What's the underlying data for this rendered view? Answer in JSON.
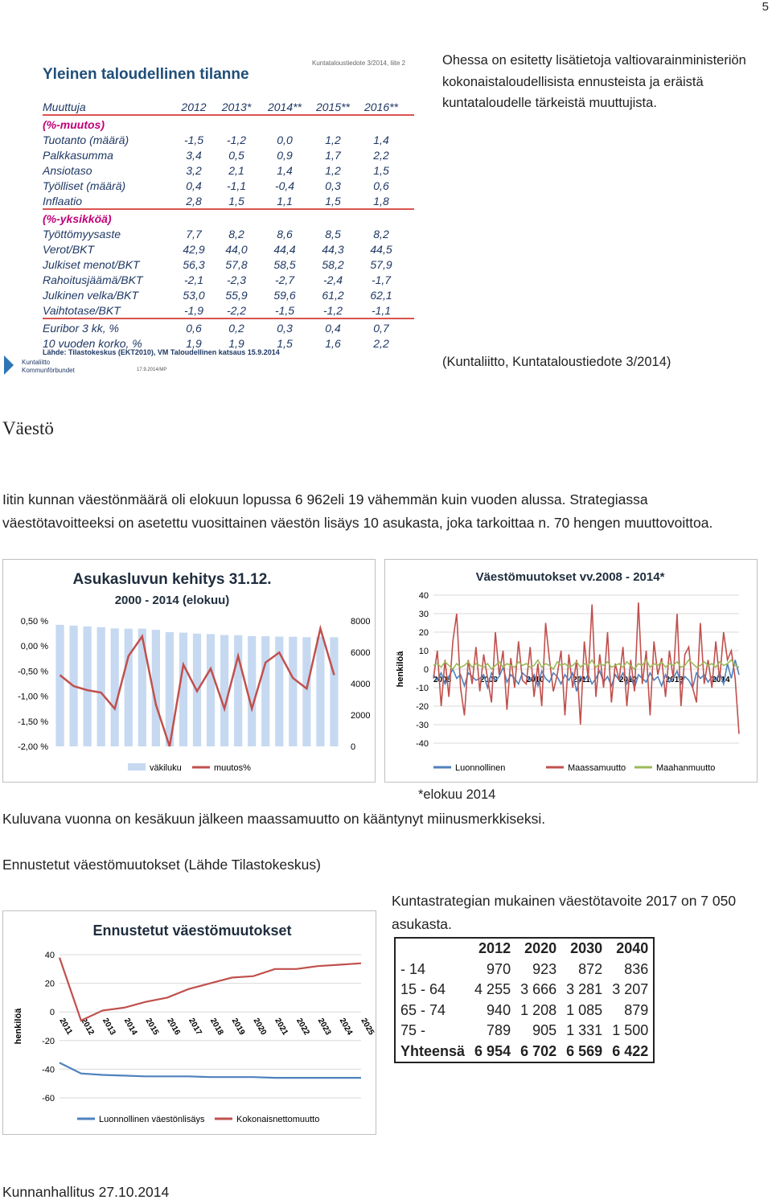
{
  "page_number": "5",
  "econ_table": {
    "title": "Yleinen taloudellinen tilanne",
    "note": "Kuntataloustiedote 3/2014, liite 2",
    "header": [
      "Muuttuja",
      "2012",
      "2013*",
      "2014**",
      "2015**",
      "2016**"
    ],
    "groups": [
      {
        "title": "(%-muutos)",
        "rows": [
          [
            "Tuotanto (määrä)",
            "-1,5",
            "-1,2",
            "0,0",
            "1,2",
            "1,4"
          ],
          [
            "Palkkasumma",
            "3,4",
            "0,5",
            "0,9",
            "1,7",
            "2,2"
          ],
          [
            "Ansiotaso",
            "3,2",
            "2,1",
            "1,4",
            "1,2",
            "1,5"
          ],
          [
            "Työlliset (määrä)",
            "0,4",
            "-1,1",
            "-0,4",
            "0,3",
            "0,6"
          ],
          [
            "Inflaatio",
            "2,8",
            "1,5",
            "1,1",
            "1,5",
            "1,8"
          ]
        ]
      },
      {
        "title": "(%-yksikköä)",
        "rows": [
          [
            "Työttömyysaste",
            "7,7",
            "8,2",
            "8,6",
            "8,5",
            "8,2"
          ],
          [
            "Verot/BKT",
            "42,9",
            "44,0",
            "44,4",
            "44,3",
            "44,5"
          ],
          [
            "Julkiset menot/BKT",
            "56,3",
            "57,8",
            "58,5",
            "58,2",
            "57,9"
          ],
          [
            "Rahoitusjäämä/BKT",
            "-2,1",
            "-2,3",
            "-2,7",
            "-2,4",
            "-1,7"
          ],
          [
            "Julkinen velka/BKT",
            "53,0",
            "55,9",
            "59,6",
            "61,2",
            "62,1"
          ],
          [
            "Vaihtotase/BKT",
            "-1,9",
            "-2,2",
            "-1,5",
            "-1,2",
            "-1,1"
          ]
        ]
      },
      {
        "rows": [
          [
            "Euribor 3 kk, %",
            "0,6",
            "0,2",
            "0,3",
            "0,4",
            "0,7"
          ],
          [
            "10 vuoden korko, %",
            "1,9",
            "1,9",
            "1,5",
            "1,6",
            "2,2"
          ]
        ]
      }
    ],
    "source": "Lähde: Tilastokeskus (EKT2010), VM Taloudellinen katsaus 15.9.2014",
    "logo": [
      "Kuntaliitto",
      "Kommunförbundet"
    ],
    "stamp": "17.9.2014/MP"
  },
  "intro_text": "Ohessa on esitetty lisätietoja valtiovarainministeriön kokonaistaloudellisista ennusteista ja eräistä kuntataloudelle tärkeistä muuttujista.",
  "intro_source": "(Kuntaliitto, Kuntataloustiedote 3/2014)",
  "heading1": "Väestö",
  "paragraph1": "Iitin kunnan väestönmäärä oli elokuun lopussa 6 962eli 19 vähemmän kuin vuoden alussa. Strategiassa väestötavoitteeksi on asetettu vuosittainen väestön lisäys 10 asukasta, joka tarkoittaa n. 70 hengen muuttovoittoa.",
  "charts": [
    {
      "type": "bar_line",
      "title": "Asukasluvun kehitys 31.12.",
      "subtitle": "2000 - 2014 (elokuu)",
      "categories": [
        null,
        null,
        null,
        null,
        null,
        null,
        null,
        null,
        null,
        null,
        null,
        null,
        null,
        null,
        null,
        null,
        null,
        null,
        null,
        null,
        null
      ],
      "series": [
        {
          "name": "väkiluku",
          "color": "#c6d9f1",
          "axis": "y2",
          "values": [
            7750,
            7700,
            7650,
            7600,
            7520,
            7500,
            7510,
            7430,
            7280,
            7250,
            7190,
            7160,
            7100,
            7090,
            7030,
            7020,
            7000,
            6990,
            6960,
            6990,
            6962
          ]
        },
        {
          "name": "muutos%",
          "color": "#c0504d",
          "values": [
            -0.58,
            -0.8,
            -0.88,
            -0.93,
            -1.25,
            -0.2,
            0.19,
            -1.17,
            -2.0,
            -0.37,
            -0.9,
            -0.45,
            -1.25,
            -0.2,
            -1.25,
            -0.33,
            -0.13,
            -0.64,
            -0.85,
            0.35,
            -0.58
          ]
        }
      ],
      "ylim": [
        -2,
        0.5
      ],
      "yticks": [
        {
          "value": 0.5,
          "label": "0,50 %"
        },
        {
          "value": 0,
          "label": "0,00 %"
        },
        {
          "value": -0.5,
          "label": "-0,50 %"
        },
        {
          "value": -1,
          "label": "-1,00 %"
        },
        {
          "value": -1.5,
          "label": "-1,50 %"
        },
        {
          "value": -2,
          "label": "-2,00 %"
        }
      ],
      "y2lim": [
        0,
        8000
      ],
      "y2ticks": [
        0,
        2000,
        4000,
        6000,
        8000
      ],
      "grid": false
    },
    {
      "type": "line",
      "title": "Väestömuutokset vv.2008 - 2014*",
      "y_label": "henkilöä",
      "categories": [
        "2008",
        null,
        null,
        null,
        null,
        null,
        null,
        null,
        null,
        null,
        null,
        null,
        "2009",
        null,
        null,
        null,
        null,
        null,
        null,
        null,
        null,
        null,
        null,
        null,
        "2010",
        null,
        null,
        null,
        null,
        null,
        null,
        null,
        null,
        null,
        null,
        null,
        "2011",
        null,
        null,
        null,
        null,
        null,
        null,
        null,
        null,
        null,
        null,
        null,
        "2012",
        null,
        null,
        null,
        null,
        null,
        null,
        null,
        null,
        null,
        null,
        null,
        "2013",
        null,
        null,
        null,
        null,
        null,
        null,
        null,
        null,
        null,
        null,
        null,
        "2014",
        null,
        null,
        null,
        null,
        null,
        null,
        null
      ],
      "series": [
        {
          "name": "Luonnollinen",
          "color": "#4f81bd",
          "values": [
            -3,
            -6,
            -2,
            -8,
            -4,
            0,
            -5,
            -3,
            -9,
            -2,
            -4,
            -6,
            -5,
            -3,
            -10,
            -2,
            -6,
            -4,
            1,
            -7,
            -3,
            -5,
            -8,
            -2,
            -4,
            -6,
            -3,
            -9,
            -1,
            -5,
            -7,
            -2,
            -4,
            -8,
            -3,
            -6,
            -2,
            -12,
            -4,
            -6,
            -3,
            -8,
            -5,
            -1,
            -7,
            -4,
            -9,
            -3,
            -6,
            -2,
            -8,
            -4,
            -10,
            -3,
            -5,
            -7,
            -2,
            -6,
            -4,
            -9,
            -3,
            -7,
            -5,
            -1,
            -8,
            -4,
            -6,
            -10,
            -2,
            -5,
            -3,
            -7,
            -4,
            -6,
            -2,
            -8,
            3,
            -5,
            5,
            -3
          ]
        },
        {
          "name": "Maassamuutto",
          "color": "#c0504d",
          "values": [
            -5,
            10,
            -20,
            5,
            -15,
            15,
            30,
            -10,
            -25,
            5,
            -8,
            12,
            -12,
            8,
            -5,
            -18,
            20,
            -3,
            10,
            -22,
            6,
            -10,
            15,
            -6,
            -8,
            12,
            -15,
            3,
            -20,
            25,
            5,
            -12,
            -3,
            10,
            -25,
            8,
            -10,
            5,
            -30,
            15,
            -5,
            35,
            -15,
            8,
            -10,
            20,
            -18,
            3,
            -6,
            12,
            -20,
            5,
            -12,
            36,
            -8,
            10,
            -25,
            15,
            -3,
            6,
            -15,
            10,
            -5,
            30,
            -20,
            8,
            12,
            -10,
            -18,
            25,
            -8,
            5,
            -10,
            15,
            -6,
            20,
            5,
            10,
            -5,
            -35
          ]
        },
        {
          "name": "Maahanmuutto",
          "color": "#9bbb59",
          "values": [
            2,
            3,
            1,
            4,
            2,
            0,
            3,
            1,
            2,
            4,
            1,
            3,
            2,
            1,
            3,
            0,
            2,
            4,
            1,
            3,
            2,
            1,
            4,
            2,
            3,
            1,
            2,
            5,
            1,
            3,
            2,
            0,
            4,
            2,
            3,
            1,
            2,
            4,
            1,
            3,
            2,
            5,
            1,
            3,
            2,
            4,
            1,
            2,
            3,
            1,
            4,
            2,
            0,
            3,
            2,
            5,
            1,
            3,
            2,
            4,
            1,
            3,
            2,
            4,
            1,
            2,
            5,
            3,
            1,
            2,
            4,
            2,
            3,
            1,
            4,
            2,
            3,
            5,
            2,
            1
          ]
        }
      ],
      "ylim": [
        -40,
        40
      ],
      "yticks": [
        -40,
        -30,
        -20,
        -10,
        0,
        10,
        20,
        30,
        40
      ],
      "grid": true
    }
  ],
  "chart_note": "*elokuu 2014",
  "paragraph2": "Kuluvana vuonna on kesäkuun jälkeen maassamuutto on kääntynyt miinusmerkkiseksi.",
  "heading2": "Ennustetut väestömuutokset (Lähde Tilastokeskus)",
  "forecast_chart": {
    "type": "line",
    "title": "Ennustetut väestömuutokset",
    "y_label": "henkilöä",
    "categories": [
      "2011",
      "2012",
      "2013",
      "2014",
      "2015",
      "2016",
      "2017",
      "2018",
      "2019",
      "2020",
      "2021",
      "2022",
      "2023",
      "2024",
      "2025"
    ],
    "series": [
      {
        "name": "Luonnollinen väestönlisäys",
        "color": "#4f81bd",
        "values": [
          -35.5,
          -43,
          -44,
          -44.5,
          -45,
          -45,
          -45,
          -45.5,
          -45.5,
          -45.5,
          -46,
          -46,
          -46,
          -46,
          -46
        ]
      },
      {
        "name": "Kokonaisnettomuutto",
        "color": "#c0504d",
        "values": [
          38,
          -6,
          1,
          3,
          7,
          10,
          16,
          20,
          24,
          25,
          30,
          30,
          32,
          33,
          34
        ]
      }
    ],
    "ylim": [
      -60,
      40
    ],
    "yticks": [
      -60,
      -40,
      -20,
      0,
      20,
      40
    ],
    "grid": true
  },
  "target_text": "Kuntastrategian mukainen väestötavoite 2017 on 7 050 asukasta.",
  "pop_table": {
    "header": [
      "2012",
      "2020",
      "2030",
      "2040"
    ],
    "rows": [
      {
        "label": "- 14",
        "values": [
          "970",
          "923",
          "872",
          "836"
        ]
      },
      {
        "label": "15 - 64",
        "values": [
          "4 255",
          "3 666",
          "3 281",
          "3 207"
        ]
      },
      {
        "label": "65 - 74",
        "values": [
          "940",
          "1 208",
          "1 085",
          "879"
        ]
      },
      {
        "label": "75 -",
        "values": [
          "789",
          "905",
          "1 331",
          "1 500"
        ]
      },
      {
        "label": "Yhteensä",
        "values": [
          "6 954",
          "6 702",
          "6 569",
          "6 422"
        ]
      }
    ]
  },
  "footer": "Kunnanhallitus 27.10.2014"
}
